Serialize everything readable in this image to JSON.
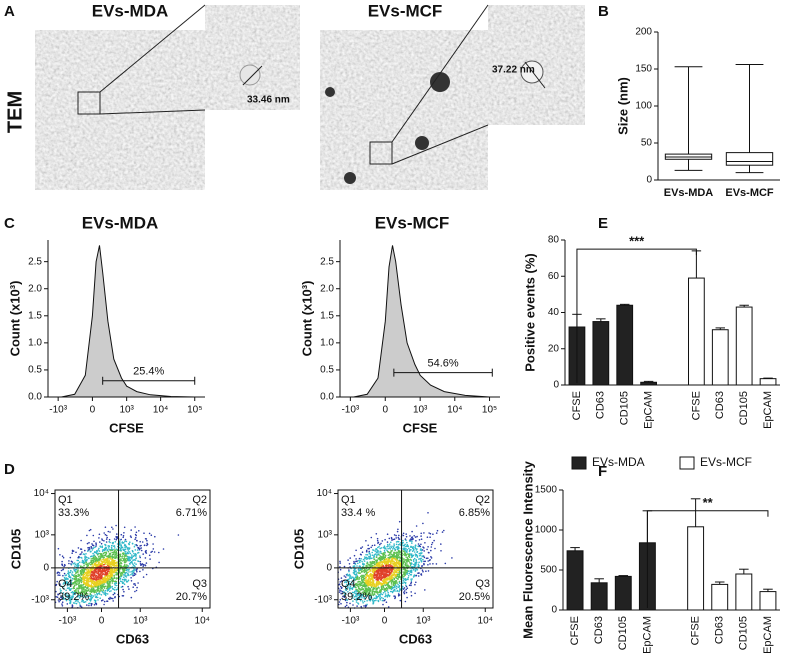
{
  "panel_letters": [
    "A",
    "B",
    "C",
    "D",
    "E",
    "F"
  ],
  "tem": {
    "row_label": "TEM",
    "titles": [
      "EVs-MDA",
      "EVs-MCF"
    ],
    "measurements": [
      "33.46 nm",
      "37.22 nm"
    ]
  },
  "flow_titles": [
    "EVs-MDA",
    "EVs-MCF"
  ],
  "dot_plots": {
    "xticks": [
      "-10³",
      "0",
      "10³",
      "10⁴"
    ],
    "yticks": [
      "10⁴",
      "10³",
      "0",
      "-10³"
    ],
    "plots": [
      {
        "xlabel": "CD63",
        "ylabel": "CD105",
        "quadrants": [
          {
            "name": "Q1",
            "value": "33.3%"
          },
          {
            "name": "Q2",
            "value": "6.71%"
          },
          {
            "name": "Q3",
            "value": "20.7%"
          },
          {
            "name": "Q4",
            "value": "39.2%"
          }
        ]
      },
      {
        "xlabel": "CD63",
        "ylabel": "CD105",
        "quadrants": [
          {
            "name": "Q1",
            "value": "33.4 %"
          },
          {
            "name": "Q2",
            "value": "6.85%"
          },
          {
            "name": "Q3",
            "value": "20.5%"
          },
          {
            "name": "Q4",
            "value": "39.2%"
          }
        ]
      }
    ]
  },
  "chart_data": [
    {
      "type": "box",
      "ylabel": "Size (nm)",
      "categories": [
        "EVs-MDA",
        "EVs-MCF"
      ],
      "min": [
        13,
        10
      ],
      "q1": [
        28,
        20
      ],
      "median": [
        31,
        25
      ],
      "q3": [
        35,
        37
      ],
      "max": [
        153,
        156
      ],
      "ylim": [
        0,
        200
      ],
      "yticks": [
        0,
        50,
        100,
        150,
        200
      ]
    },
    {
      "type": "histogram",
      "xlabel": "CFSE",
      "ylabel": "Count (x10³)",
      "xscale": "logicle",
      "color": "#cccccc",
      "x": [
        -800,
        -300,
        -100,
        0,
        50,
        100,
        150,
        250,
        400,
        700,
        1000,
        2000,
        5000,
        20000,
        100000
      ],
      "values": [
        0,
        0.05,
        0.4,
        1.5,
        2.5,
        2.8,
        2.3,
        1.4,
        0.7,
        0.35,
        0.2,
        0.1,
        0.04,
        0.01,
        0
      ],
      "gate": {
        "label": "25.4%",
        "x": [
          150,
          100000
        ],
        "y": 0.3
      },
      "xlim": [
        -2000,
        200000
      ],
      "xticks": [
        {
          "value": -1000,
          "label": "-10³"
        },
        0,
        {
          "value": 1000,
          "label": "10³"
        },
        {
          "value": 10000,
          "label": "10⁴"
        },
        {
          "value": 100000,
          "label": "10⁵"
        }
      ],
      "ylim": [
        0,
        2.9
      ],
      "yticks": [
        {
          "value": 0,
          "label": "0.0"
        },
        0.5,
        {
          "value": 1,
          "label": "1.0"
        },
        1.5,
        {
          "value": 2,
          "label": "2.0"
        },
        2.5
      ]
    },
    {
      "type": "histogram",
      "xlabel": "CFSE",
      "ylabel": "Count (x10³)",
      "xscale": "logicle",
      "color": "#cccccc",
      "x": [
        -800,
        -300,
        -100,
        0,
        50,
        100,
        150,
        250,
        400,
        700,
        1000,
        2000,
        5000,
        20000,
        100000
      ],
      "values": [
        0,
        0.05,
        0.35,
        1.4,
        2.4,
        2.8,
        2.5,
        1.7,
        1.0,
        0.6,
        0.4,
        0.22,
        0.1,
        0.03,
        0
      ],
      "gate": {
        "label": "54.6%",
        "x": [
          120,
          120000
        ],
        "y": 0.45
      },
      "xlim": [
        -2000,
        200000
      ],
      "xticks": [
        {
          "value": -1000,
          "label": "-10³"
        },
        0,
        {
          "value": 1000,
          "label": "10³"
        },
        {
          "value": 10000,
          "label": "10⁴"
        },
        {
          "value": 100000,
          "label": "10⁵"
        }
      ],
      "ylim": [
        0,
        2.9
      ],
      "yticks": [
        {
          "value": 0,
          "label": "0.0"
        },
        0.5,
        {
          "value": 1,
          "label": "1.0"
        },
        1.5,
        {
          "value": 2,
          "label": "2.0"
        },
        2.5
      ]
    },
    {
      "type": "bar",
      "ylabel": "Positive events (%)",
      "categories": [
        "CFSE",
        "CD63",
        "CD105",
        "EpCAM",
        "CFSE",
        "CD63",
        "CD105",
        "EpCAM"
      ],
      "series": [
        {
          "color": "#222222",
          "values": [
            32,
            35,
            44,
            1.5,
            null,
            null,
            null,
            null
          ],
          "errors": [
            7,
            1.5,
            0.5,
            0.5,
            null,
            null,
            null,
            null
          ]
        },
        {
          "color": "#ffffff",
          "values": [
            null,
            null,
            null,
            null,
            59,
            30.5,
            43,
            3.5
          ],
          "errors": [
            null,
            null,
            null,
            null,
            15,
            1,
            1,
            0.3
          ]
        }
      ],
      "annotations": [
        {
          "label": "***",
          "from": 0,
          "to": 4,
          "y": 75
        }
      ],
      "ylim": [
        0,
        80
      ],
      "yticks": [
        0,
        20,
        40,
        60,
        80
      ]
    },
    {
      "type": "bar",
      "ylabel": "Mean Fluorescence Intensity",
      "legend": "top",
      "categories": [
        "CFSE",
        "CD63",
        "CD105",
        "EpCAM",
        "CFSE",
        "CD63",
        "CD105",
        "EpCAM"
      ],
      "series": [
        {
          "name": "EVs-MDA",
          "color": "#222222",
          "values": [
            740,
            340,
            420,
            840,
            null,
            null,
            null,
            null
          ],
          "errors": [
            40,
            50,
            10,
            400,
            null,
            null,
            null,
            null
          ]
        },
        {
          "name": "EVs-MCF",
          "color": "#ffffff",
          "values": [
            null,
            null,
            null,
            null,
            1040,
            320,
            450,
            230
          ],
          "errors": [
            null,
            null,
            null,
            null,
            350,
            30,
            60,
            30
          ]
        }
      ],
      "annotations": [
        {
          "label": "**",
          "from": 3,
          "to": 7,
          "y": 1240
        }
      ],
      "ylim": [
        0,
        1500
      ],
      "yticks": [
        0,
        500,
        1000,
        1500
      ]
    }
  ]
}
